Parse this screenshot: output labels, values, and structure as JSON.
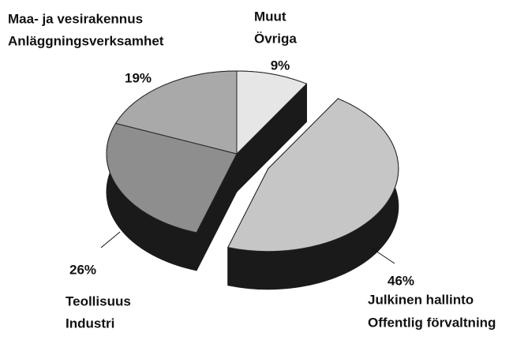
{
  "chart_data": {
    "type": "pie",
    "categories": [
      [
        "Muut",
        "Övriga"
      ],
      [
        "Julkinen hallinto",
        "Offentlig förvaltning"
      ],
      [
        "Teollisuus",
        "Industri"
      ],
      [
        "Maa- ja vesirakennus",
        "Anläggningsverksamhet"
      ]
    ],
    "values": [
      9,
      46,
      26,
      19
    ],
    "value_labels": [
      "9%",
      "46%",
      "26%",
      "19%"
    ],
    "colors": [
      "#e6e6e6",
      "#c6c6c6",
      "#8e8e8e",
      "#a9a9a9"
    ],
    "side_color": "#1a1a1a",
    "explode": [
      false,
      true,
      false,
      false
    ]
  }
}
